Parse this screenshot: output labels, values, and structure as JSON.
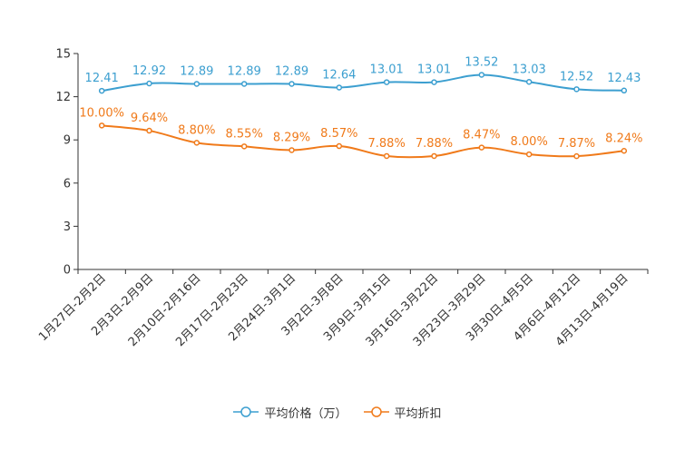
{
  "chart_data": {
    "type": "line",
    "categories": [
      "1月27日-2月2日",
      "2月3日-2月9日",
      "2月10日-2月16日",
      "2月17日-2月23日",
      "2月24日-3月1日",
      "3月2日-3月8日",
      "3月9日-3月15日",
      "3月16日-3月22日",
      "3月23日-3月29日",
      "3月30日-4月5日",
      "4月6日-4月12日",
      "4月13日-4月19日"
    ],
    "series": [
      {
        "name": "平均价格（万）",
        "color": "#3c9fd0",
        "values": [
          12.41,
          12.92,
          12.89,
          12.89,
          12.89,
          12.64,
          13.01,
          13.01,
          13.52,
          13.03,
          12.52,
          12.43
        ],
        "labels": [
          "12.41",
          "12.92",
          "12.89",
          "12.89",
          "12.89",
          "12.64",
          "13.01",
          "13.01",
          "13.52",
          "13.03",
          "12.52",
          "12.43"
        ]
      },
      {
        "name": "平均折扣",
        "color": "#f07a1a",
        "values": [
          10.0,
          9.64,
          8.8,
          8.55,
          8.29,
          8.57,
          7.88,
          7.88,
          8.47,
          8.0,
          7.87,
          8.24
        ],
        "labels": [
          "10.00%",
          "9.64%",
          "8.80%",
          "8.55%",
          "8.29%",
          "8.57%",
          "7.88%",
          "7.88%",
          "8.47%",
          "8.00%",
          "7.87%",
          "8.24%"
        ]
      }
    ],
    "ylim": [
      0,
      15
    ],
    "yticks": [
      "0",
      "3",
      "6",
      "9",
      "12",
      "15"
    ],
    "legend_position": "bottom-center",
    "grid": false
  }
}
